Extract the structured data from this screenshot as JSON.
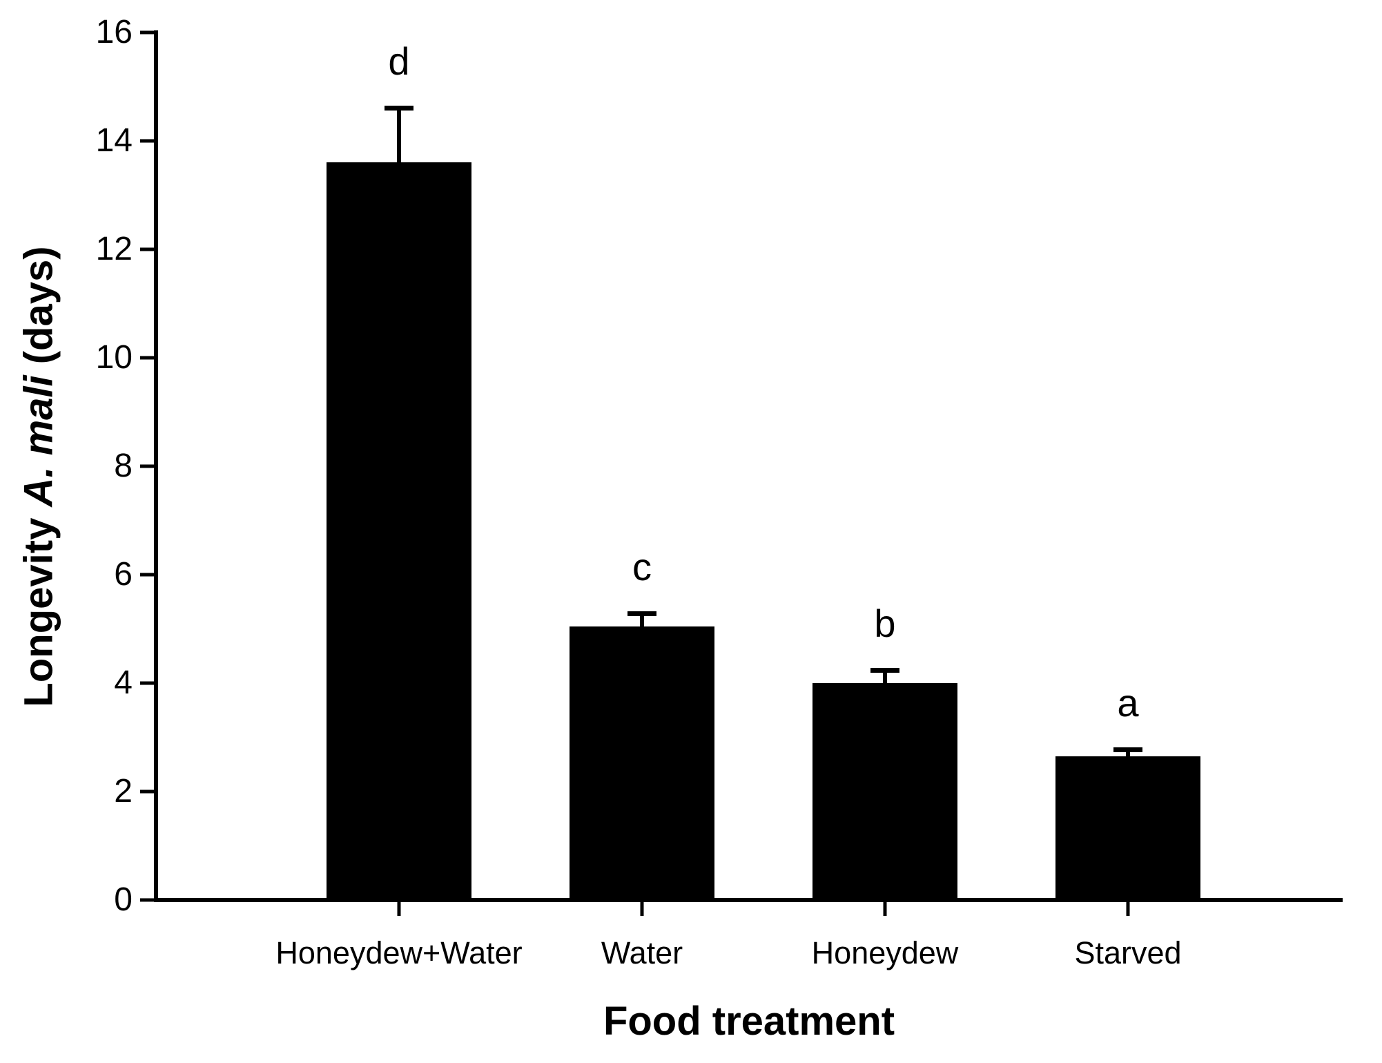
{
  "figure": {
    "background_color": "#ffffff",
    "ink_color": "#000000"
  },
  "chart_data": {
    "type": "bar",
    "title": "",
    "categories": [
      "Honeydew+Water",
      "Water",
      "Honeydew",
      "Starved"
    ],
    "values": [
      13.6,
      5.05,
      4.0,
      2.65
    ],
    "error_upper": [
      1.05,
      0.27,
      0.28,
      0.16
    ],
    "sig_letters": [
      "d",
      "c",
      "b",
      "a"
    ],
    "xlabel": "Food treatment",
    "ylabel": "Longevity A. mali (days)",
    "ylabel_parts": {
      "prefix": "Longevity ",
      "species_italic": "A. mali",
      "suffix": " (days)"
    },
    "ylim": [
      0,
      16
    ],
    "ytick_step": 2,
    "ytick_labels": [
      "0",
      "2",
      "4",
      "6",
      "8",
      "10",
      "12",
      "14",
      "16"
    ],
    "bar_color": "#000000",
    "grid": false,
    "legend": false,
    "error_bars": "upper only",
    "layout_hint": "vertical bars, y axis left with outward ticks, x ticks below baseline"
  }
}
